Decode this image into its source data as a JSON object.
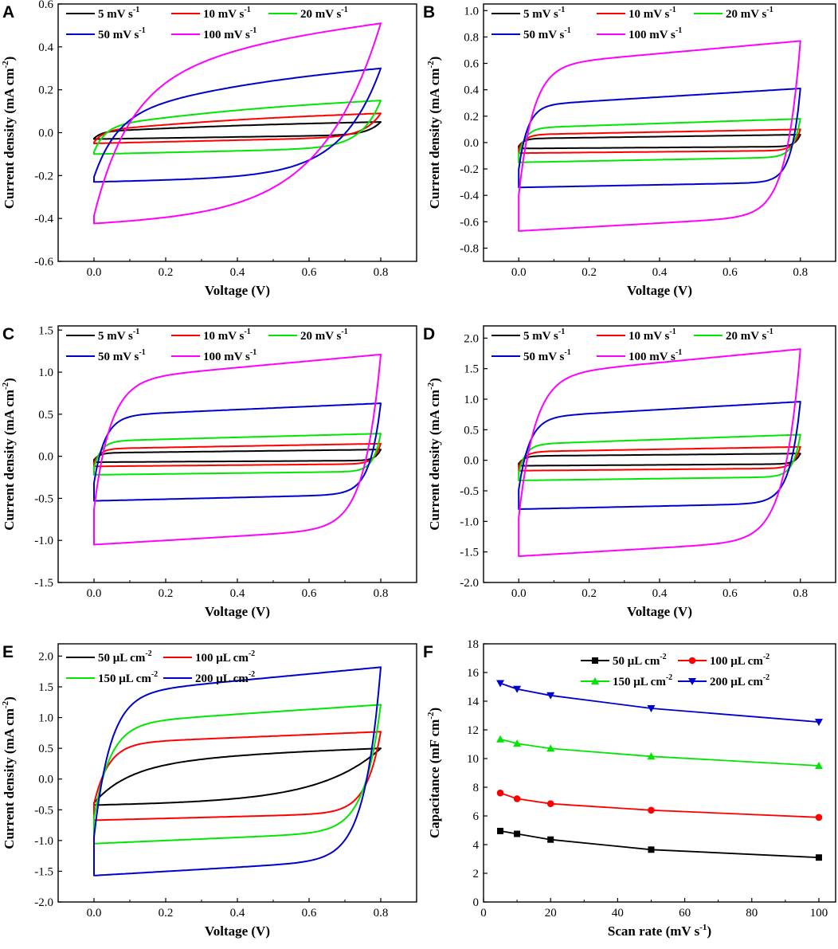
{
  "chart_data": [
    {
      "panel": "A",
      "type": "line",
      "title": "",
      "xlabel": "Voltage (V)",
      "ylabel": "Current density (mA cm-2)",
      "ylabel_main": "Current density (mA cm",
      "ylabel_sup": "-2",
      "ylabel_end": ")",
      "xlim": [
        -0.1,
        0.9
      ],
      "ylim": [
        -0.6,
        0.6
      ],
      "xticks": [
        "0.0",
        "0.2",
        "0.4",
        "0.6",
        "0.8"
      ],
      "yticks": [
        "-0.6",
        "-0.4",
        "-0.2",
        "0.0",
        "0.2",
        "0.4",
        "0.6"
      ],
      "legend": "top-left, 3 columns",
      "series": [
        {
          "name": "5 mV s-1",
          "label_main": "5 mV s",
          "label_sup": "-1",
          "color": "#000000",
          "shape": "triangle",
          "top": [
            0.005,
            0.05
          ],
          "bottom": [
            -0.03,
            -0.01
          ],
          "curve": 0.02
        },
        {
          "name": "10 mV s-1",
          "label_main": "10 mV s",
          "label_sup": "-1",
          "color": "#ff0000",
          "shape": "triangle",
          "top": [
            0.01,
            0.09
          ],
          "bottom": [
            -0.05,
            -0.02
          ],
          "curve": 0.025
        },
        {
          "name": "20 mV s-1",
          "label_main": "20 mV s",
          "label_sup": "-1",
          "color": "#00e600",
          "shape": "triangle",
          "top": [
            0.03,
            0.15
          ],
          "bottom": [
            -0.1,
            -0.07
          ],
          "curve": 0.03
        },
        {
          "name": "50 mV s-1",
          "label_main": "50 mV s",
          "label_sup": "-1",
          "color": "#0000cc",
          "shape": "triangle",
          "top": [
            0.08,
            0.3
          ],
          "bottom": [
            -0.23,
            -0.2
          ],
          "curve": 0.06
        },
        {
          "name": "100 mV s-1",
          "label_main": "100 mV s",
          "label_sup": "-1",
          "color": "#ff00ff",
          "shape": "triangle",
          "top": [
            0.2,
            0.51
          ],
          "bottom": [
            -0.43,
            -0.38
          ],
          "curve": 0.09
        }
      ]
    },
    {
      "panel": "B",
      "type": "line",
      "title": "",
      "xlabel": "Voltage (V)",
      "ylabel": "Current density (mA cm-2)",
      "ylabel_main": "Current density (mA cm",
      "ylabel_sup": "-2",
      "ylabel_end": ")",
      "xlim": [
        -0.1,
        0.9
      ],
      "ylim": [
        -0.9,
        1.05
      ],
      "xticks": [
        "0.0",
        "0.2",
        "0.4",
        "0.6",
        "0.8"
      ],
      "yticks": [
        "-0.8",
        "-0.6",
        "-0.4",
        "-0.2",
        "0.0",
        "0.2",
        "0.4",
        "0.6",
        "0.8",
        "1.0"
      ],
      "legend": "top-left, 3 columns",
      "series": [
        {
          "name": "5 mV s-1",
          "label_main": "5 mV s",
          "label_sup": "-1",
          "color": "#000000",
          "shape": "rect",
          "top": [
            0.03,
            0.06
          ],
          "bottom": [
            -0.045,
            -0.03
          ],
          "curve": 0.015
        },
        {
          "name": "10 mV s-1",
          "label_main": "10 mV s",
          "label_sup": "-1",
          "color": "#ff0000",
          "shape": "rect",
          "top": [
            0.06,
            0.1
          ],
          "bottom": [
            -0.08,
            -0.06
          ],
          "curve": 0.018
        },
        {
          "name": "20 mV s-1",
          "label_main": "20 mV s",
          "label_sup": "-1",
          "color": "#00e600",
          "shape": "rect",
          "top": [
            0.11,
            0.18
          ],
          "bottom": [
            -0.15,
            -0.11
          ],
          "curve": 0.02
        },
        {
          "name": "50 mV s-1",
          "label_main": "50 mV s",
          "label_sup": "-1",
          "color": "#0000cc",
          "shape": "rect",
          "top": [
            0.28,
            0.41
          ],
          "bottom": [
            -0.34,
            -0.3
          ],
          "curve": 0.025
        },
        {
          "name": "100 mV s-1",
          "label_main": "100 mV s",
          "label_sup": "-1",
          "color": "#ff00ff",
          "shape": "rect",
          "top": [
            0.58,
            0.77
          ],
          "bottom": [
            -0.67,
            -0.55
          ],
          "curve": 0.04
        }
      ]
    },
    {
      "panel": "C",
      "type": "line",
      "title": "",
      "xlabel": "Voltage (V)",
      "ylabel": "Current density (mA cm-2)",
      "ylabel_main": "Current density (mA cm",
      "ylabel_sup": "-2",
      "ylabel_end": ")",
      "xlim": [
        -0.1,
        0.9
      ],
      "ylim": [
        -1.5,
        1.55
      ],
      "xticks": [
        "0.0",
        "0.2",
        "0.4",
        "0.6",
        "0.8"
      ],
      "yticks": [
        "-1.5",
        "-1.0",
        "-0.5",
        "0.0",
        "0.5",
        "1.0",
        "1.5"
      ],
      "legend": "top-left, 3 columns",
      "series": [
        {
          "name": "5 mV s-1",
          "label_main": "5 mV s",
          "label_sup": "-1",
          "color": "#000000",
          "shape": "rect",
          "top": [
            0.04,
            0.08
          ],
          "bottom": [
            -0.07,
            -0.05
          ],
          "curve": 0.015
        },
        {
          "name": "10 mV s-1",
          "label_main": "10 mV s",
          "label_sup": "-1",
          "color": "#ff0000",
          "shape": "rect",
          "top": [
            0.09,
            0.15
          ],
          "bottom": [
            -0.12,
            -0.09
          ],
          "curve": 0.018
        },
        {
          "name": "20 mV s-1",
          "label_main": "20 mV s",
          "label_sup": "-1",
          "color": "#00e600",
          "shape": "rect",
          "top": [
            0.18,
            0.27
          ],
          "bottom": [
            -0.22,
            -0.18
          ],
          "curve": 0.02
        },
        {
          "name": "50 mV s-1",
          "label_main": "50 mV s",
          "label_sup": "-1",
          "color": "#0000cc",
          "shape": "rect",
          "top": [
            0.48,
            0.63
          ],
          "bottom": [
            -0.53,
            -0.45
          ],
          "curve": 0.03
        },
        {
          "name": "100 mV s-1",
          "label_main": "100 mV s",
          "label_sup": "-1",
          "color": "#ff00ff",
          "shape": "rect",
          "top": [
            0.9,
            1.21
          ],
          "bottom": [
            -1.05,
            -0.85
          ],
          "curve": 0.045
        }
      ]
    },
    {
      "panel": "D",
      "type": "line",
      "title": "",
      "xlabel": "Voltage (V)",
      "ylabel": "Current density (mA cm-2)",
      "ylabel_main": "Current density (mA cm",
      "ylabel_sup": "-2",
      "ylabel_end": ")",
      "xlim": [
        -0.1,
        0.9
      ],
      "ylim": [
        -2.0,
        2.2
      ],
      "xticks": [
        "0.0",
        "0.2",
        "0.4",
        "0.6",
        "0.8"
      ],
      "yticks": [
        "-2.0",
        "-1.5",
        "-1.0",
        "-0.5",
        "0.0",
        "0.5",
        "1.0",
        "1.5",
        "2.0"
      ],
      "legend": "top-left, 3 columns",
      "series": [
        {
          "name": "5 mV s-1",
          "label_main": "5 mV s",
          "label_sup": "-1",
          "color": "#000000",
          "shape": "rect",
          "top": [
            0.07,
            0.11
          ],
          "bottom": [
            -0.09,
            -0.06
          ],
          "curve": 0.015
        },
        {
          "name": "10 mV s-1",
          "label_main": "10 mV s",
          "label_sup": "-1",
          "color": "#ff0000",
          "shape": "rect",
          "top": [
            0.14,
            0.22
          ],
          "bottom": [
            -0.17,
            -0.13
          ],
          "curve": 0.018
        },
        {
          "name": "20 mV s-1",
          "label_main": "20 mV s",
          "label_sup": "-1",
          "color": "#00e600",
          "shape": "rect",
          "top": [
            0.26,
            0.42
          ],
          "bottom": [
            -0.33,
            -0.27
          ],
          "curve": 0.02
        },
        {
          "name": "50 mV s-1",
          "label_main": "50 mV s",
          "label_sup": "-1",
          "color": "#0000cc",
          "shape": "rect",
          "top": [
            0.7,
            0.96
          ],
          "bottom": [
            -0.8,
            -0.7
          ],
          "curve": 0.03
        },
        {
          "name": "100 mV s-1",
          "label_main": "100 mV s",
          "label_sup": "-1",
          "color": "#ff00ff",
          "shape": "rect",
          "top": [
            1.38,
            1.82
          ],
          "bottom": [
            -1.57,
            -1.3
          ],
          "curve": 0.045
        }
      ]
    },
    {
      "panel": "E",
      "type": "line",
      "title": "",
      "xlabel": "Voltage (V)",
      "ylabel": "Current density (mA cm-2)",
      "ylabel_main": "Current density (mA cm",
      "ylabel_sup": "-2",
      "ylabel_end": ")",
      "xlim": [
        -0.1,
        0.9
      ],
      "ylim": [
        -2.0,
        2.2
      ],
      "xticks": [
        "0.0",
        "0.2",
        "0.4",
        "0.6",
        "0.8"
      ],
      "yticks": [
        "-2.0",
        "-1.5",
        "-1.0",
        "-0.5",
        "0.0",
        "0.5",
        "1.0",
        "1.5",
        "2.0"
      ],
      "legend": "top-left, 2 columns",
      "series": [
        {
          "name": "50 μL cm-2",
          "label_main": "50 μL cm",
          "label_sup": "-2",
          "color": "#000000",
          "shape": "triangle",
          "top": [
            0.2,
            0.5
          ],
          "bottom": [
            -0.43,
            -0.35
          ],
          "curve": 0.09
        },
        {
          "name": "100 μL cm-2",
          "label_main": "100 μL cm",
          "label_sup": "-2",
          "color": "#ff0000",
          "shape": "rect",
          "top": [
            0.58,
            0.77
          ],
          "bottom": [
            -0.67,
            -0.55
          ],
          "curve": 0.04
        },
        {
          "name": "150 μL cm-2",
          "label_main": "150 μL cm",
          "label_sup": "-2",
          "color": "#00e600",
          "shape": "rect",
          "top": [
            0.9,
            1.21
          ],
          "bottom": [
            -1.05,
            -0.85
          ],
          "curve": 0.045
        },
        {
          "name": "200 μL cm-2",
          "label_main": "200 μL cm",
          "label_sup": "-2",
          "color": "#0000cc",
          "shape": "rect",
          "top": [
            1.38,
            1.82
          ],
          "bottom": [
            -1.57,
            -1.3
          ],
          "curve": 0.045
        }
      ]
    },
    {
      "panel": "F",
      "type": "line",
      "title": "",
      "xlabel": "Scan rate (mV s-1)",
      "xlabel_main": "Scan rate (mV s",
      "xlabel_sup": "-1",
      "xlabel_end": ")",
      "ylabel": "Capacitance (mF cm-2)",
      "ylabel_main": "Capacitance (mF cm",
      "ylabel_sup": "-2",
      "ylabel_end": ")",
      "xlim": [
        0,
        105
      ],
      "ylim": [
        0,
        18
      ],
      "xticks": [
        "0",
        "20",
        "40",
        "60",
        "80",
        "100"
      ],
      "yticks": [
        "0",
        "2",
        "4",
        "6",
        "8",
        "10",
        "12",
        "14",
        "16",
        "18"
      ],
      "legend": "top-right, 2 columns",
      "x": [
        5,
        10,
        20,
        50,
        100
      ],
      "series": [
        {
          "name": "50 μL cm-2",
          "label_main": "50 μL cm",
          "label_sup": "-2",
          "color": "#000000",
          "marker": "square",
          "values": [
            4.95,
            4.75,
            4.35,
            3.65,
            3.1
          ]
        },
        {
          "name": "100 μL cm-2",
          "label_main": "100 μL cm",
          "label_sup": "-2",
          "color": "#ff0000",
          "marker": "circle",
          "values": [
            7.6,
            7.2,
            6.85,
            6.4,
            5.9
          ]
        },
        {
          "name": "150 μL cm-2",
          "label_main": "150 μL cm",
          "label_sup": "-2",
          "color": "#00e600",
          "marker": "triangle-up",
          "values": [
            11.35,
            11.05,
            10.7,
            10.15,
            9.5
          ]
        },
        {
          "name": "200 μL cm-2",
          "label_main": "200 μL cm",
          "label_sup": "-2",
          "color": "#0000cc",
          "marker": "triangle-down",
          "values": [
            15.25,
            14.85,
            14.4,
            13.5,
            12.55
          ]
        }
      ]
    }
  ]
}
